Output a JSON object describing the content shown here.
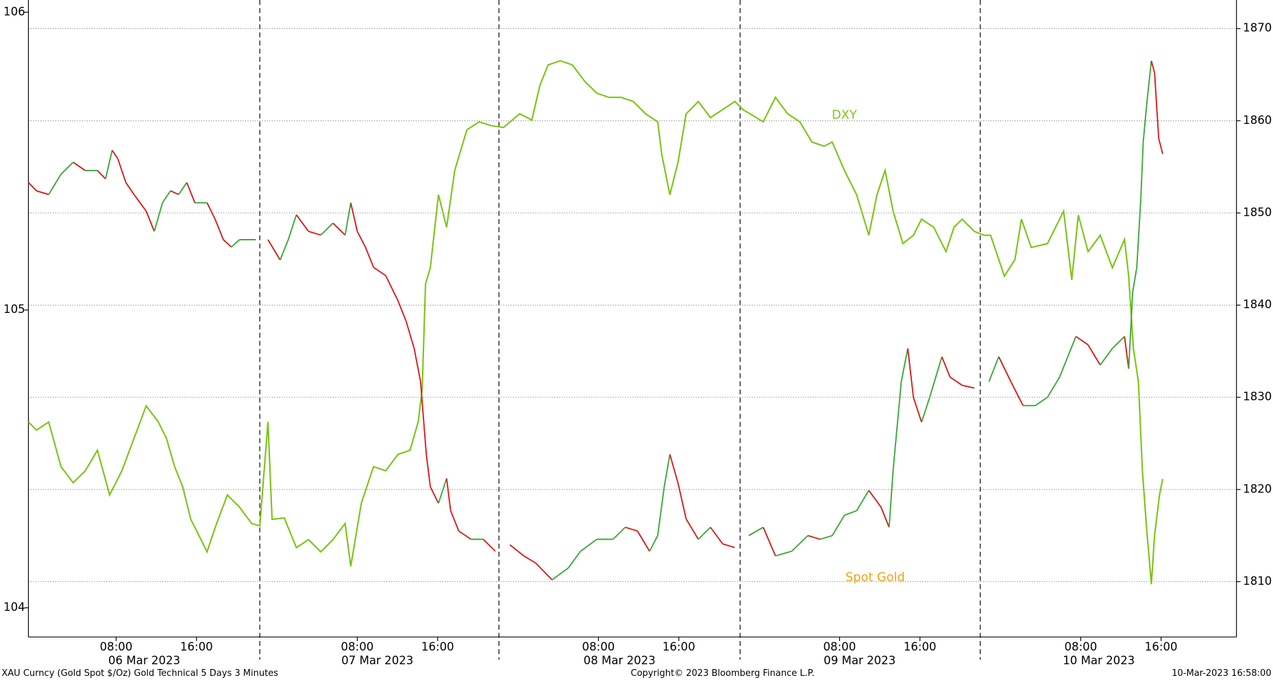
{
  "chart_data": {
    "type": "line",
    "series": [
      {
        "name": "DXY",
        "color": "#7cc417",
        "axis": "y",
        "x": [
          -0.73,
          0.08,
          1.29,
          2.51,
          3.72,
          4.93,
          6.14,
          7.35,
          8.57,
          9.78,
          10.99,
          12.2,
          13.01,
          13.82,
          14.63,
          15.43,
          16.24,
          17.05,
          17.86,
          19.07,
          20.28,
          21.49,
          22.3,
          23.11,
          23.52,
          24.73,
          25.94,
          27.15,
          28.36,
          29.58,
          30.79,
          31.35,
          32.4,
          33.62,
          34.83,
          36.04,
          37.25,
          38.06,
          38.46,
          38.79,
          39.27,
          40.08,
          40.89,
          41.7,
          42.91,
          44.12,
          45.33,
          46.55,
          48.16,
          49.37,
          50.18,
          50.99,
          52.2,
          53.41,
          54.63,
          55.84,
          57.05,
          58.26,
          59.47,
          60.69,
          61.9,
          62.3,
          63.11,
          63.92,
          64.73,
          65.94,
          67.15,
          68.36,
          69.58,
          70.38,
          72.4,
          73.62,
          74.83,
          76.04,
          77.25,
          78.46,
          79.27,
          80.48,
          81.7,
          82.91,
          83.72,
          84.53,
          85.33,
          86.3,
          87.35,
          88.16,
          89.37,
          90.59,
          91.39,
          92.2,
          93.41,
          94.38,
          95.03,
          96.4,
          97.45,
          98.1,
          99.07,
          100.69,
          102.3,
          103.11,
          103.76,
          104.73,
          105.94,
          107.15,
          108.36,
          108.77,
          109.25,
          109.74,
          110.14,
          110.55,
          111.03,
          111.35,
          111.84,
          112.16
        ],
        "values": [
          104.624,
          104.597,
          104.624,
          104.474,
          104.42,
          104.46,
          104.529,
          104.379,
          104.46,
          104.569,
          104.678,
          104.624,
          104.569,
          104.474,
          104.406,
          104.297,
          104.243,
          104.188,
          104.27,
          104.379,
          104.338,
          104.283,
          104.275,
          104.624,
          104.297,
          104.302,
          104.202,
          104.229,
          104.188,
          104.229,
          104.283,
          104.139,
          104.351,
          104.474,
          104.46,
          104.515,
          104.529,
          104.624,
          104.733,
          105.087,
          105.142,
          105.387,
          105.278,
          105.469,
          105.605,
          105.632,
          105.619,
          105.613,
          105.659,
          105.638,
          105.755,
          105.823,
          105.837,
          105.823,
          105.768,
          105.728,
          105.714,
          105.714,
          105.7,
          105.659,
          105.632,
          105.523,
          105.387,
          105.496,
          105.659,
          105.7,
          105.646,
          105.673,
          105.7,
          105.673,
          105.632,
          105.714,
          105.659,
          105.632,
          105.564,
          105.55,
          105.564,
          105.469,
          105.387,
          105.251,
          105.387,
          105.469,
          105.332,
          105.223,
          105.251,
          105.305,
          105.278,
          105.196,
          105.278,
          105.305,
          105.264,
          105.251,
          105.251,
          105.114,
          105.169,
          105.305,
          105.21,
          105.223,
          105.332,
          105.101,
          105.319,
          105.196,
          105.251,
          105.142,
          105.237,
          105.114,
          104.869,
          104.76,
          104.46,
          104.27,
          104.079,
          104.243,
          104.379,
          104.433
        ]
      },
      {
        "name": "Spot Gold",
        "color": "#f5a01a",
        "up_color": "#3aa83a",
        "down_color": "#d81c1c",
        "axis": "y2",
        "x": [
          -0.73,
          0.08,
          1.29,
          2.51,
          3.72,
          4.93,
          6.14,
          6.95,
          7.6,
          8.16,
          8.97,
          9.78,
          10.99,
          11.8,
          12.61,
          13.41,
          14.22,
          15.03,
          15.84,
          17.05,
          17.86,
          18.67,
          19.47,
          20.28,
          21.9,
          22.7,
          23.11,
          24.32,
          25.13,
          25.94,
          27.15,
          28.36,
          29.58,
          30.79,
          31.35,
          32.0,
          32.81,
          33.62,
          34.83,
          36.04,
          36.85,
          37.66,
          38.3,
          38.87,
          39.27,
          40.08,
          40.89,
          41.29,
          42.1,
          43.31,
          44.53,
          45.74,
          46.4,
          47.19,
          48.57,
          49.78,
          51.39,
          53.01,
          54.22,
          55.84,
          57.45,
          58.67,
          59.88,
          61.09,
          61.9,
          62.55,
          63.11,
          63.92,
          64.73,
          65.94,
          67.15,
          68.36,
          69.58,
          70.3,
          70.95,
          72.4,
          73.62,
          75.23,
          76.85,
          78.06,
          79.27,
          80.48,
          81.7,
          82.91,
          84.12,
          84.93,
          85.33,
          86.14,
          86.79,
          87.35,
          88.16,
          88.97,
          90.18,
          90.99,
          92.2,
          93.41,
          94.1,
          94.87,
          95.84,
          97.05,
          98.26,
          99.47,
          100.69,
          101.9,
          102.71,
          103.52,
          104.73,
          105.94,
          107.15,
          108.36,
          108.77,
          109.17,
          109.58,
          109.98,
          110.22,
          110.55,
          111.03,
          111.35,
          111.76,
          112.16
        ],
        "values": [
          1853.3,
          1852.4,
          1852.0,
          1854.2,
          1855.5,
          1854.6,
          1854.6,
          1853.7,
          1856.8,
          1855.9,
          1853.3,
          1852.0,
          1850.2,
          1848.0,
          1851.1,
          1852.4,
          1852.0,
          1853.3,
          1851.1,
          1851.1,
          1849.3,
          1847.1,
          1846.3,
          1847.1,
          1847.1,
          null,
          1847.1,
          1844.9,
          1847.1,
          1849.8,
          1848.0,
          1847.6,
          1848.9,
          1847.6,
          1851.1,
          1848.0,
          1846.3,
          1844.1,
          1843.2,
          1840.5,
          1838.3,
          1835.3,
          1831.7,
          1823.8,
          1820.3,
          1818.5,
          1821.2,
          1817.7,
          1815.5,
          1814.6,
          1814.6,
          1813.3,
          null,
          1814.0,
          1812.8,
          1812.0,
          1810.2,
          1811.5,
          1813.3,
          1814.6,
          1814.6,
          1815.9,
          1815.5,
          1813.3,
          1815.0,
          1820.3,
          1823.8,
          1820.7,
          1816.8,
          1814.6,
          1815.9,
          1814.1,
          1813.7,
          null,
          1815.0,
          1815.9,
          1812.8,
          1813.3,
          1815.0,
          1814.6,
          1815.0,
          1817.2,
          1817.7,
          1819.9,
          1818.1,
          1815.9,
          1822.1,
          1831.7,
          1835.3,
          1830.0,
          1827.3,
          1830.0,
          1834.4,
          1832.2,
          1831.3,
          1831.0,
          null,
          1831.7,
          1834.4,
          1831.7,
          1829.1,
          1829.1,
          1830.0,
          1832.2,
          1834.4,
          1836.6,
          1835.7,
          1833.5,
          1835.3,
          1836.6,
          1833.1,
          1841.4,
          1844.1,
          1851.5,
          1857.7,
          1861.6,
          1866.5,
          1865.2,
          1858.1,
          1856.4
        ]
      }
    ],
    "xlim": [
      -0.73,
      119.5
    ],
    "xticks": [
      {
        "value": 8,
        "label": "08:00"
      },
      {
        "value": 16,
        "label": "16:00"
      },
      {
        "value": 32,
        "label": "08:00"
      },
      {
        "value": 40,
        "label": "16:00"
      },
      {
        "value": 56,
        "label": "08:00"
      },
      {
        "value": 64,
        "label": "16:00"
      },
      {
        "value": 80,
        "label": "08:00"
      },
      {
        "value": 88,
        "label": "16:00"
      },
      {
        "value": 104,
        "label": "08:00"
      },
      {
        "value": 112,
        "label": "16:00"
      }
    ],
    "xticks2": [
      {
        "value": 10.8,
        "label": "06 Mar 2023"
      },
      {
        "value": 34.0,
        "label": "07 Mar 2023"
      },
      {
        "value": 58.1,
        "label": "08 Mar 2023"
      },
      {
        "value": 82.0,
        "label": "09 Mar 2023"
      },
      {
        "value": 105.8,
        "label": "10 Mar 2023"
      }
    ],
    "separators": [
      22.3,
      46.1,
      70.1,
      94.0
    ],
    "ylim": [
      103.902,
      106.041
    ],
    "yticks": [
      104,
      105,
      106
    ],
    "y2lim": [
      1804.0,
      1873.1
    ],
    "y2ticks": [
      1810,
      1820,
      1830,
      1840,
      1850,
      1860,
      1870
    ],
    "grid": true,
    "footnotes": [
      "XAU Curncy (Gold Spot  $/Oz) Gold Technical 5 Days 3 Minutes",
      "Copyright© 2023 Bloomberg Finance L.P.",
      "10-Mar-2023 16:58:00"
    ]
  }
}
